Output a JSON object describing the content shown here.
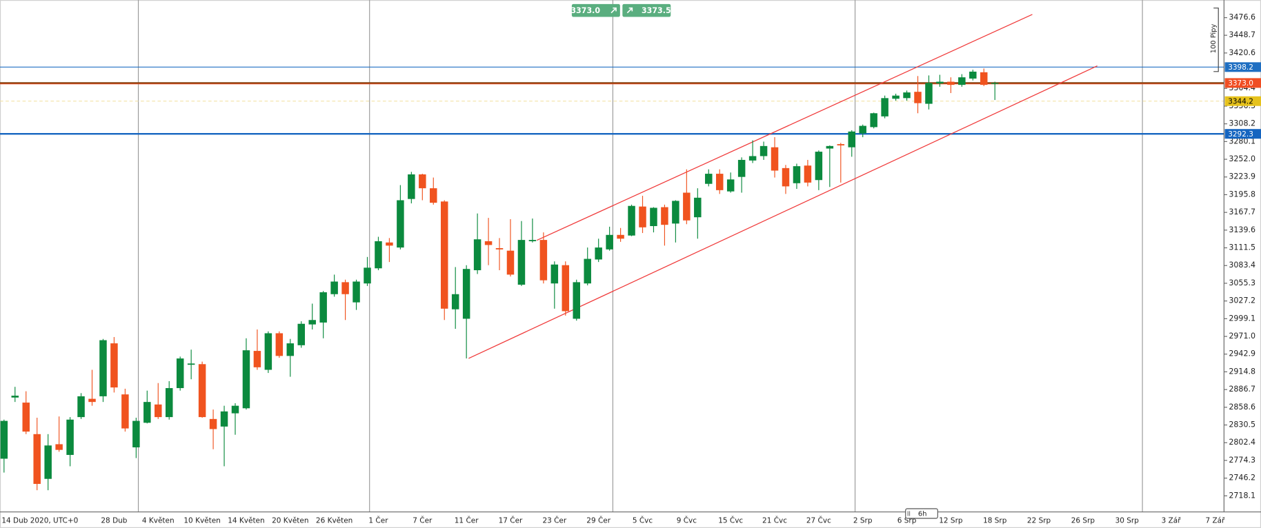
{
  "chart_data": {
    "type": "candlestick",
    "categories": [
      "14 Dub 2020, UTC+0",
      null,
      null,
      null,
      null,
      null,
      null,
      null,
      null,
      null,
      "28 Dub",
      null,
      null,
      null,
      "4 Květen",
      null,
      null,
      null,
      "10 Květen",
      null,
      null,
      null,
      "14 Květen",
      null,
      null,
      null,
      "20 Květen",
      null,
      null,
      null,
      "26 Květen",
      null,
      null,
      null,
      "1 Čer",
      null,
      null,
      null,
      "7 Čer",
      null,
      null,
      null,
      "11 Čer",
      null,
      null,
      null,
      "17 Čer",
      null,
      null,
      null,
      "23 Čer",
      null,
      null,
      null,
      "29 Čer",
      null,
      null,
      null,
      "5 Čvc",
      null,
      null,
      null,
      "9 Čvc",
      null,
      null,
      null,
      "15 Čvc",
      null,
      null,
      null,
      "21 Čvc",
      null,
      null,
      null,
      "27 Čvc",
      null,
      null,
      null,
      "2 Srp",
      null,
      null,
      null,
      "6 Srp",
      null,
      null,
      null,
      "12 Srp",
      null,
      null,
      null,
      "18 Srp",
      null,
      null,
      null,
      "22 Srp",
      null,
      null,
      null,
      "26 Srp",
      null,
      null,
      null,
      "30 Srp",
      null,
      null,
      null,
      "3 Zář",
      null,
      null,
      null,
      "7 Zář"
    ],
    "open": [
      2777,
      2874,
      2866,
      2816,
      2745,
      2800,
      2783,
      2843,
      2872,
      2876,
      2960,
      2879,
      2795,
      2834,
      2863,
      2843,
      2889,
      2926,
      2927,
      2840,
      2828,
      2849,
      2857,
      2948,
      2918,
      2976,
      2940,
      2957,
      2990,
      2993,
      3038,
      3057,
      3025,
      3055,
      3079,
      3120,
      3112,
      3189,
      3228,
      3206,
      3185,
      3014,
      2999,
      3076,
      3122,
      3111,
      3107,
      3053,
      3122,
      3124,
      3055,
      3084,
      2999,
      3055,
      3093,
      3109,
      3132,
      3131,
      3177,
      3146,
      3176,
      3150,
      3199,
      3160,
      3213,
      3229,
      3201,
      3224,
      3250,
      3257,
      3271,
      3238,
      3214,
      3242,
      3219,
      3269,
      3276,
      3271,
      3293,
      3303,
      3320,
      3348,
      3349,
      3359,
      3340,
      3372,
      3375,
      3370,
      3380,
      3390,
      3372,
      null,
      null,
      null,
      null,
      null,
      null,
      null,
      null,
      null,
      null,
      null,
      null,
      null,
      null,
      null,
      null,
      null,
      null,
      null,
      null
    ],
    "high": [
      2839,
      2891,
      2884,
      2842,
      2816,
      2844,
      2843,
      2881,
      2918,
      2967,
      2970,
      2888,
      2842,
      2885,
      2897,
      2900,
      2939,
      2950,
      2931,
      2855,
      2861,
      2865,
      2968,
      2982,
      2979,
      2979,
      2967,
      2995,
      3023,
      3043,
      3069,
      3061,
      3061,
      3097,
      3129,
      3127,
      3211,
      3232,
      3229,
      3223,
      3187,
      3081,
      3084,
      3166,
      3159,
      3127,
      3157,
      3154,
      3158,
      3136,
      3090,
      3090,
      3061,
      3112,
      3126,
      3145,
      3143,
      3180,
      3194,
      3176,
      3180,
      3187,
      3236,
      3206,
      3236,
      3236,
      3231,
      3255,
      3282,
      3280,
      3287,
      3243,
      3245,
      3251,
      3266,
      3274,
      3278,
      3298,
      3307,
      3326,
      3353,
      3356,
      3361,
      3384,
      3385,
      3386,
      3382,
      3387,
      3394,
      3396,
      3375,
      null,
      null,
      null,
      null,
      null,
      null,
      null,
      null,
      null,
      null,
      null,
      null,
      null,
      null,
      null,
      null,
      null,
      null,
      null,
      null
    ],
    "low": [
      2755,
      2867,
      2816,
      2727,
      2727,
      2788,
      2765,
      2840,
      2861,
      2867,
      2882,
      2820,
      2778,
      2833,
      2840,
      2839,
      2885,
      2903,
      2842,
      2792,
      2765,
      2815,
      2855,
      2918,
      2913,
      2937,
      2907,
      2953,
      2982,
      2968,
      3034,
      2997,
      3013,
      3051,
      3076,
      3089,
      3109,
      3182,
      3187,
      3180,
      2997,
      2983,
      2936,
      3070,
      3084,
      3076,
      3066,
      3051,
      3120,
      3055,
      3015,
      3004,
      2996,
      3052,
      3089,
      3107,
      3121,
      3130,
      3135,
      3136,
      3115,
      3120,
      3149,
      3126,
      3209,
      3197,
      3199,
      3199,
      3246,
      3251,
      3223,
      3197,
      3205,
      3209,
      3203,
      3208,
      3215,
      3256,
      3287,
      3301,
      3317,
      3345,
      3345,
      3325,
      3331,
      3367,
      3357,
      3367,
      3377,
      3368,
      3346,
      null,
      null,
      null,
      null,
      null,
      null,
      null,
      null,
      null,
      null,
      null,
      null,
      null,
      null,
      null,
      null,
      null,
      null,
      null,
      null
    ],
    "close": [
      2837,
      2877,
      2820,
      2737,
      2798,
      2791,
      2839,
      2876,
      2867,
      2965,
      2890,
      2825,
      2837,
      2867,
      2843,
      2889,
      2936,
      2928,
      2843,
      2824,
      2852,
      2861,
      2949,
      2922,
      2976,
      2940,
      2960,
      2991,
      2997,
      3041,
      3058,
      3038,
      3058,
      3080,
      3122,
      3115,
      3187,
      3228,
      3206,
      3183,
      3015,
      3038,
      3078,
      3125,
      3116,
      3109,
      3069,
      3124,
      3124,
      3060,
      3085,
      3011,
      3057,
      3094,
      3112,
      3132,
      3126,
      3178,
      3144,
      3175,
      3148,
      3186,
      3155,
      3191,
      3229,
      3203,
      3220,
      3251,
      3257,
      3273,
      3234,
      3209,
      3241,
      3215,
      3264,
      3273,
      3274,
      3296,
      3305,
      3325,
      3349,
      3353,
      3358,
      3341,
      3373,
      3375,
      3370,
      3382,
      3391,
      3370,
      3373,
      null,
      null,
      null,
      null,
      null,
      null,
      null,
      null,
      null,
      null,
      null,
      null,
      null,
      null,
      null,
      null,
      null,
      null,
      null,
      null
    ],
    "up_color": "#0b8a3e",
    "down_color": "#f0531f",
    "ylim": [
      2692.6,
      3504.6
    ],
    "yticks": [
      3476.6,
      3448.7,
      3420.6,
      3364.4,
      3336.3,
      3308.2,
      3280.1,
      {
        "value": 3252,
        "label": "3252.0"
      },
      3223.9,
      3195.8,
      3167.7,
      3139.6,
      3111.5,
      3083.4,
      3055.3,
      3027.2,
      2999.1,
      {
        "value": 2971,
        "label": "2971.0"
      },
      2942.9,
      2914.8,
      2886.7,
      2858.6,
      2830.5,
      2802.4,
      2774.3,
      2746.2,
      2718.1
    ],
    "separators": [
      12.2,
      33.2,
      55.3,
      77.3,
      103.4
    ],
    "trendlines": [
      {
        "x": [
          48.4,
          93.4
        ],
        "y": [
          3123.5,
          3481.7
        ],
        "color": "#f03a3a"
      },
      {
        "x": [
          42.2,
          99.3
        ],
        "y": [
          2936.1,
          3400.1
        ],
        "color": "#f03a3a"
      }
    ],
    "levels": [
      {
        "value": 3398.2,
        "label": "3398.2",
        "color": "#1f6fc2",
        "text_color": "#ffffff",
        "width": 1,
        "dashed": false
      },
      {
        "value": 3373.0,
        "label": "3373.0",
        "color": "#f04e23",
        "line_color": "#8a4210",
        "text_color": "#ffffff",
        "width": 2,
        "dashed": false
      },
      {
        "value": 3344.2,
        "label": "3344.2",
        "color": "#e6c21c",
        "line_color": "#f2e2a6",
        "text_color": "#000000",
        "width": 1,
        "dashed": true
      },
      {
        "value": 3292.3,
        "label": "3292.3",
        "color": "#1565c0",
        "text_color": "#ffffff",
        "width": 2,
        "dashed": false
      }
    ],
    "bid": "3373.0",
    "ask": "3373.5",
    "pips_label": "100 Pipy",
    "timeframe": "6h"
  }
}
